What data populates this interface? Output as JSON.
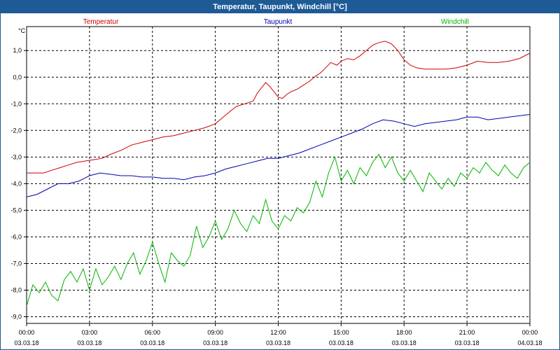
{
  "window": {
    "title": "Temperatur, Taupunkt, Windchill [°C]"
  },
  "chart_data": {
    "type": "line",
    "title": "Temperatur, Taupunkt, Windchill [°C]",
    "ylabel": "°C",
    "ylim": [
      -9.25,
      1.9
    ],
    "xlim_hours": [
      0,
      24
    ],
    "y_ticks": [
      "1,0",
      "0,0",
      "-1,0",
      "-2,0",
      "-3,0",
      "-4,0",
      "-5,0",
      "-6,0",
      "-7,0",
      "-8,0",
      "-9,0"
    ],
    "y_tick_values": [
      1,
      0,
      -1,
      -2,
      -3,
      -4,
      -5,
      -6,
      -7,
      -8,
      -9
    ],
    "x_ticks": [
      {
        "time": "00:00",
        "date": "03.03.18"
      },
      {
        "time": "03:00",
        "date": "03.03.18"
      },
      {
        "time": "06:00",
        "date": "03.03.18"
      },
      {
        "time": "09:00",
        "date": "03.03.18"
      },
      {
        "time": "12:00",
        "date": "03.03.18"
      },
      {
        "time": "15:00",
        "date": "03.03.18"
      },
      {
        "time": "18:00",
        "date": "03.03.18"
      },
      {
        "time": "21:00",
        "date": "03.03.18"
      },
      {
        "time": "00:00",
        "date": "04.03.18"
      }
    ],
    "grid": true,
    "legend_position": "top",
    "series": [
      {
        "name": "Temperatur",
        "color": "#cc0000",
        "x": [
          0,
          0.8,
          1.2,
          1.6,
          2.0,
          2.4,
          2.8,
          3.2,
          3.6,
          4.0,
          4.5,
          5.0,
          5.5,
          6.0,
          6.5,
          7.0,
          7.5,
          8.0,
          8.5,
          9.0,
          9.3,
          9.6,
          10.0,
          10.4,
          10.8,
          11.0,
          11.2,
          11.4,
          11.6,
          11.8,
          12.0,
          12.2,
          12.4,
          12.6,
          12.9,
          13.2,
          13.5,
          13.8,
          14.0,
          14.2,
          14.5,
          14.8,
          15.0,
          15.3,
          15.6,
          15.9,
          16.2,
          16.5,
          16.8,
          17.1,
          17.4,
          17.7,
          18.0,
          18.3,
          18.6,
          19.0,
          19.5,
          20.0,
          20.5,
          21.0,
          21.5,
          22.0,
          22.5,
          23.0,
          23.5,
          24.0
        ],
        "values": [
          -3.6,
          -3.6,
          -3.5,
          -3.4,
          -3.3,
          -3.2,
          -3.15,
          -3.1,
          -3.05,
          -2.9,
          -2.75,
          -2.55,
          -2.45,
          -2.35,
          -2.25,
          -2.2,
          -2.1,
          -2.0,
          -1.9,
          -1.75,
          -1.55,
          -1.35,
          -1.1,
          -1.0,
          -0.9,
          -0.6,
          -0.4,
          -0.2,
          -0.35,
          -0.55,
          -0.75,
          -0.8,
          -0.65,
          -0.55,
          -0.45,
          -0.3,
          -0.15,
          0.05,
          0.15,
          0.3,
          0.55,
          0.45,
          0.6,
          0.7,
          0.65,
          0.8,
          1.0,
          1.2,
          1.3,
          1.35,
          1.25,
          1.0,
          0.65,
          0.45,
          0.35,
          0.3,
          0.3,
          0.3,
          0.35,
          0.45,
          0.6,
          0.55,
          0.55,
          0.6,
          0.7,
          0.9
        ]
      },
      {
        "name": "Taupunkt",
        "color": "#0000b4",
        "x": [
          0,
          0.5,
          1.0,
          1.5,
          2.0,
          2.5,
          3.0,
          3.5,
          4.0,
          4.5,
          5.0,
          5.5,
          6.0,
          6.5,
          7.0,
          7.5,
          8.0,
          8.5,
          9.0,
          9.5,
          10.0,
          10.5,
          11.0,
          11.5,
          12.0,
          12.5,
          13.0,
          13.5,
          14.0,
          14.5,
          15.0,
          15.5,
          16.0,
          16.5,
          17.0,
          17.5,
          18.0,
          18.5,
          19.0,
          19.5,
          20.0,
          20.5,
          21.0,
          21.5,
          22.0,
          22.5,
          23.0,
          23.5,
          24.0
        ],
        "values": [
          -4.5,
          -4.4,
          -4.2,
          -4.0,
          -4.0,
          -3.9,
          -3.7,
          -3.6,
          -3.65,
          -3.7,
          -3.7,
          -3.75,
          -3.75,
          -3.8,
          -3.8,
          -3.85,
          -3.75,
          -3.7,
          -3.6,
          -3.45,
          -3.35,
          -3.25,
          -3.15,
          -3.05,
          -3.05,
          -2.95,
          -2.85,
          -2.7,
          -2.55,
          -2.4,
          -2.25,
          -2.1,
          -1.95,
          -1.75,
          -1.6,
          -1.65,
          -1.75,
          -1.85,
          -1.75,
          -1.7,
          -1.65,
          -1.6,
          -1.5,
          -1.5,
          -1.6,
          -1.55,
          -1.5,
          -1.45,
          -1.4
        ]
      },
      {
        "name": "Windchill",
        "color": "#00b400",
        "x": [
          0,
          0.3,
          0.6,
          0.9,
          1.2,
          1.5,
          1.8,
          2.1,
          2.4,
          2.7,
          3.0,
          3.3,
          3.6,
          3.9,
          4.2,
          4.5,
          4.8,
          5.1,
          5.4,
          5.7,
          6.0,
          6.3,
          6.6,
          6.9,
          7.2,
          7.5,
          7.8,
          8.1,
          8.4,
          8.7,
          9.0,
          9.3,
          9.6,
          9.9,
          10.2,
          10.5,
          10.8,
          11.1,
          11.4,
          11.7,
          12.0,
          12.3,
          12.6,
          12.9,
          13.2,
          13.5,
          13.8,
          14.1,
          14.4,
          14.7,
          15.0,
          15.3,
          15.6,
          15.9,
          16.2,
          16.5,
          16.8,
          17.1,
          17.4,
          17.7,
          18.0,
          18.3,
          18.6,
          18.9,
          19.2,
          19.5,
          19.8,
          20.1,
          20.4,
          20.7,
          21.0,
          21.3,
          21.6,
          21.9,
          22.2,
          22.5,
          22.8,
          23.1,
          23.4,
          23.7,
          24.0
        ],
        "values": [
          -8.6,
          -7.8,
          -8.1,
          -7.7,
          -8.2,
          -8.4,
          -7.6,
          -7.3,
          -7.7,
          -7.2,
          -8.0,
          -7.2,
          -7.8,
          -7.5,
          -7.1,
          -7.6,
          -7.0,
          -6.6,
          -7.4,
          -6.9,
          -6.2,
          -7.0,
          -7.7,
          -6.6,
          -6.9,
          -7.1,
          -6.7,
          -5.6,
          -6.4,
          -6.0,
          -5.4,
          -6.1,
          -5.7,
          -5.0,
          -5.5,
          -5.8,
          -5.2,
          -5.5,
          -4.6,
          -5.4,
          -5.7,
          -5.2,
          -5.4,
          -4.9,
          -5.1,
          -4.7,
          -3.9,
          -4.5,
          -3.6,
          -3.0,
          -3.9,
          -3.5,
          -4.0,
          -3.4,
          -3.7,
          -3.2,
          -2.9,
          -3.4,
          -3.0,
          -3.6,
          -3.9,
          -3.5,
          -3.9,
          -4.3,
          -3.6,
          -3.9,
          -4.2,
          -3.8,
          -4.1,
          -3.6,
          -3.8,
          -3.4,
          -3.6,
          -3.2,
          -3.5,
          -3.7,
          -3.3,
          -3.6,
          -3.8,
          -3.4,
          -3.2
        ]
      }
    ]
  }
}
